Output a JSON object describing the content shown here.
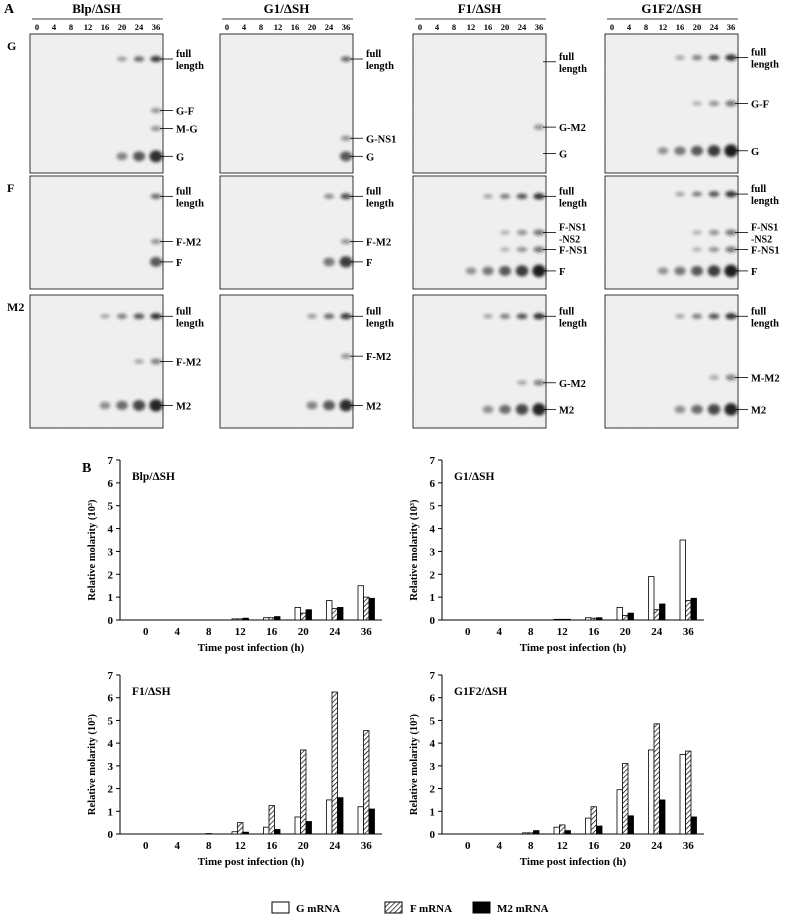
{
  "panel_a": {
    "label": "A",
    "timepoints": [
      "0",
      "4",
      "8",
      "12",
      "16",
      "20",
      "24",
      "36"
    ],
    "columns": [
      "Blp/ΔSH",
      "G1/ΔSH",
      "F1/ΔSH",
      "G1F2/ΔSH"
    ],
    "rows": [
      "G",
      "F",
      "M2"
    ],
    "band_labels": [
      [
        [
          "full length",
          "G-F",
          "M-G",
          "G"
        ],
        [
          "full length",
          "G-NS1",
          "G"
        ],
        [
          "full length",
          "G-M2",
          "G"
        ],
        [
          "full length",
          "G-F",
          "G"
        ]
      ],
      [
        [
          "full length",
          "F-M2",
          "F"
        ],
        [
          "full length",
          "F-M2",
          "F"
        ],
        [
          "full length",
          "F-NS1 -NS2",
          "F-NS1",
          "F"
        ],
        [
          "full length",
          "F-NS1 -NS2",
          "F-NS1",
          "F"
        ]
      ],
      [
        [
          "full length",
          "F-M2",
          "M2"
        ],
        [
          "full length",
          "F-M2",
          "M2"
        ],
        [
          "full length",
          "G-M2",
          "M2"
        ],
        [
          "full length",
          "M-M2",
          "M2"
        ]
      ]
    ]
  },
  "panel_b": {
    "label": "B",
    "legend": [
      {
        "name": "G mRNA",
        "pattern": "open"
      },
      {
        "name": "F mRNA",
        "pattern": "hatched"
      },
      {
        "name": "M2 mRNA",
        "pattern": "solid"
      }
    ]
  },
  "chart_data": [
    {
      "type": "bar",
      "title": "Blp/ΔSH",
      "categories": [
        "0",
        "4",
        "8",
        "12",
        "16",
        "20",
        "24",
        "36"
      ],
      "xlabel": "Time post infection (h)",
      "ylabel": "Relative molarity (10³)",
      "ylim": [
        0,
        7
      ],
      "yticks": [
        "0",
        "1",
        "2",
        "3",
        "4",
        "5",
        "6",
        "7"
      ],
      "series": [
        {
          "name": "G mRNA",
          "values": [
            0,
            0,
            0,
            0.05,
            0.1,
            0.55,
            0.85,
            1.5
          ]
        },
        {
          "name": "F mRNA",
          "values": [
            0,
            0,
            0,
            0.05,
            0.1,
            0.3,
            0.5,
            1.0
          ]
        },
        {
          "name": "M2 mRNA",
          "values": [
            0,
            0,
            0,
            0.08,
            0.15,
            0.45,
            0.55,
            0.95
          ]
        }
      ]
    },
    {
      "type": "bar",
      "title": "G1/ΔSH",
      "categories": [
        "0",
        "4",
        "8",
        "12",
        "16",
        "20",
        "24",
        "36"
      ],
      "xlabel": "Time post infection (h)",
      "ylabel": "Relative molarity (10³)",
      "ylim": [
        0,
        7
      ],
      "yticks": [
        "0",
        "1",
        "2",
        "3",
        "4",
        "5",
        "6",
        "7"
      ],
      "series": [
        {
          "name": "G mRNA",
          "values": [
            0,
            0,
            0,
            0.03,
            0.1,
            0.55,
            1.9,
            3.5
          ]
        },
        {
          "name": "F mRNA",
          "values": [
            0,
            0,
            0,
            0.03,
            0.08,
            0.2,
            0.45,
            0.85
          ]
        },
        {
          "name": "M2 mRNA",
          "values": [
            0,
            0,
            0,
            0.03,
            0.1,
            0.3,
            0.7,
            0.95
          ]
        }
      ]
    },
    {
      "type": "bar",
      "title": "F1/ΔSH",
      "categories": [
        "0",
        "4",
        "8",
        "12",
        "16",
        "20",
        "24",
        "36"
      ],
      "xlabel": "Time post infection (h)",
      "ylabel": "Relative molarity (10³)",
      "ylim": [
        0,
        7
      ],
      "yticks": [
        "0",
        "1",
        "2",
        "3",
        "4",
        "5",
        "6",
        "7"
      ],
      "series": [
        {
          "name": "G mRNA",
          "values": [
            0,
            0,
            0,
            0.1,
            0.3,
            0.75,
            1.5,
            1.2
          ]
        },
        {
          "name": "F mRNA",
          "values": [
            0,
            0,
            0.02,
            0.5,
            1.25,
            3.7,
            6.25,
            4.55
          ]
        },
        {
          "name": "M2 mRNA",
          "values": [
            0,
            0,
            0,
            0.08,
            0.2,
            0.55,
            1.6,
            1.1
          ]
        }
      ]
    },
    {
      "type": "bar",
      "title": "G1F2/ΔSH",
      "categories": [
        "0",
        "4",
        "8",
        "12",
        "16",
        "20",
        "24",
        "36"
      ],
      "xlabel": "Time post infection (h)",
      "ylabel": "Relative molarity (10³)",
      "ylim": [
        0,
        7
      ],
      "yticks": [
        "0",
        "1",
        "2",
        "3",
        "4",
        "5",
        "6",
        "7"
      ],
      "series": [
        {
          "name": "G mRNA",
          "values": [
            0,
            0,
            0.05,
            0.3,
            0.7,
            1.95,
            3.7,
            3.5
          ]
        },
        {
          "name": "F mRNA",
          "values": [
            0,
            0,
            0.05,
            0.4,
            1.2,
            3.1,
            4.85,
            3.65
          ]
        },
        {
          "name": "M2 mRNA",
          "values": [
            0,
            0,
            0.15,
            0.15,
            0.35,
            0.8,
            1.5,
            0.75
          ]
        }
      ]
    }
  ]
}
